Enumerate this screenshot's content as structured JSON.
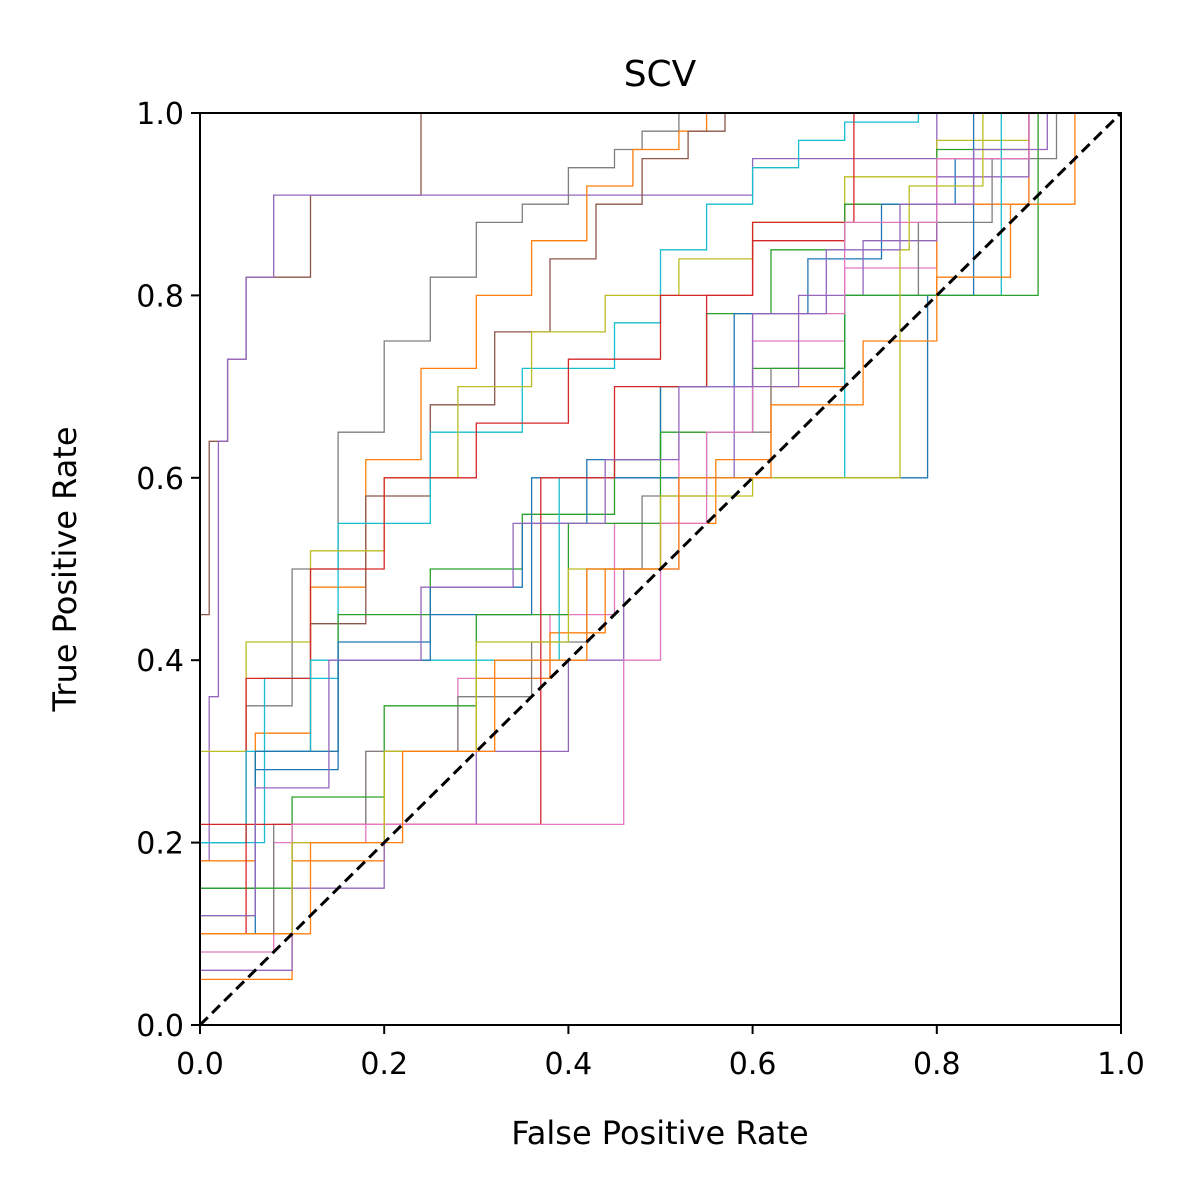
{
  "chart_data": {
    "type": "line",
    "title": "SCV",
    "xlabel": "False Positive Rate",
    "ylabel": "True Positive Rate",
    "xlim": [
      0.0,
      1.0
    ],
    "ylim": [
      0.0,
      1.0
    ],
    "xticks": [
      "0.0",
      "0.2",
      "0.4",
      "0.6",
      "0.8",
      "1.0"
    ],
    "yticks": [
      "0.0",
      "0.2",
      "0.4",
      "0.6",
      "0.8",
      "1.0"
    ],
    "grid": false,
    "legend": "none",
    "line_style": "step",
    "series": [
      {
        "color": "#8c564b",
        "x": [
          0,
          0.0,
          0.01,
          0.03,
          0.04,
          0.05,
          0.06,
          0.08,
          0.12,
          0.17,
          0.24,
          0.24
        ],
        "y": [
          0,
          0.27,
          0.45,
          0.64,
          0.73,
          0.73,
          0.82,
          0.82,
          0.82,
          0.91,
          0.91,
          1.0
        ]
      },
      {
        "color": "#9467bd",
        "x": [
          0,
          0.01,
          0.02,
          0.03,
          0.05,
          0.08,
          0.14,
          0.16,
          0.3,
          0.6,
          0.8,
          1.0
        ],
        "y": [
          0,
          0.18,
          0.36,
          0.64,
          0.73,
          0.82,
          0.91,
          0.91,
          0.91,
          0.91,
          0.95,
          1.0
        ]
      },
      {
        "color": "#7f7f7f",
        "x": [
          0,
          0.05,
          0.1,
          0.15,
          0.2,
          0.25,
          0.3,
          0.35,
          0.4,
          0.45,
          0.48,
          0.52,
          0.54,
          1.0
        ],
        "y": [
          0,
          0.2,
          0.35,
          0.5,
          0.65,
          0.75,
          0.82,
          0.88,
          0.9,
          0.94,
          0.96,
          0.98,
          1.0,
          1.0
        ]
      },
      {
        "color": "#ff7f0e",
        "x": [
          0,
          0.06,
          0.12,
          0.18,
          0.24,
          0.3,
          0.36,
          0.42,
          0.47,
          0.52,
          0.55,
          0.59,
          1.0
        ],
        "y": [
          0,
          0.18,
          0.32,
          0.48,
          0.62,
          0.72,
          0.8,
          0.86,
          0.92,
          0.96,
          0.98,
          1.0,
          1.0
        ]
      },
      {
        "color": "#8c564b",
        "x": [
          0,
          0.06,
          0.12,
          0.18,
          0.25,
          0.32,
          0.38,
          0.43,
          0.48,
          0.53,
          0.57,
          0.6,
          1.0
        ],
        "y": [
          0,
          0.15,
          0.3,
          0.44,
          0.58,
          0.68,
          0.76,
          0.84,
          0.9,
          0.95,
          0.98,
          1.0,
          1.0
        ]
      },
      {
        "color": "#17becf",
        "x": [
          0,
          0.07,
          0.15,
          0.25,
          0.35,
          0.45,
          0.5,
          0.55,
          0.6,
          0.65,
          0.7,
          0.78,
          0.9,
          1.0
        ],
        "y": [
          0,
          0.2,
          0.38,
          0.55,
          0.65,
          0.72,
          0.77,
          0.85,
          0.9,
          0.94,
          0.97,
          0.99,
          1.0,
          1.0
        ]
      },
      {
        "color": "#bcbd22",
        "x": [
          0,
          0.05,
          0.12,
          0.2,
          0.28,
          0.36,
          0.44,
          0.52,
          0.6,
          0.7,
          0.8,
          0.9,
          1.0
        ],
        "y": [
          0,
          0.3,
          0.42,
          0.52,
          0.6,
          0.7,
          0.76,
          0.8,
          0.84,
          0.88,
          0.93,
          0.97,
          1.0
        ]
      },
      {
        "color": "#d62728",
        "x": [
          0,
          0.05,
          0.12,
          0.2,
          0.3,
          0.4,
          0.5,
          0.6,
          0.7,
          0.8,
          0.9,
          1.0
        ],
        "y": [
          0,
          0.22,
          0.38,
          0.5,
          0.6,
          0.66,
          0.73,
          0.8,
          0.86,
          0.9,
          0.95,
          1.0
        ]
      },
      {
        "color": "#2ca02c",
        "x": [
          0,
          0.06,
          0.15,
          0.25,
          0.35,
          0.45,
          0.5,
          0.55,
          0.62,
          0.7,
          0.8,
          0.9,
          1.0
        ],
        "y": [
          0,
          0.12,
          0.3,
          0.45,
          0.5,
          0.56,
          0.62,
          0.7,
          0.78,
          0.85,
          0.9,
          0.96,
          1.0
        ]
      },
      {
        "color": "#1f77b4",
        "x": [
          0,
          0.06,
          0.15,
          0.25,
          0.35,
          0.42,
          0.5,
          0.58,
          0.66,
          0.74,
          0.82,
          0.9,
          1.0
        ],
        "y": [
          0,
          0.1,
          0.28,
          0.42,
          0.48,
          0.55,
          0.62,
          0.7,
          0.78,
          0.84,
          0.9,
          0.95,
          1.0
        ]
      },
      {
        "color": "#e377c2",
        "x": [
          0,
          0.08,
          0.18,
          0.28,
          0.38,
          0.45,
          0.52,
          0.6,
          0.7,
          0.8,
          0.9,
          1.0
        ],
        "y": [
          0,
          0.08,
          0.2,
          0.3,
          0.38,
          0.45,
          0.55,
          0.65,
          0.75,
          0.83,
          0.9,
          1.0
        ]
      },
      {
        "color": "#ff7f0e",
        "x": [
          0,
          0.1,
          0.2,
          0.3,
          0.38,
          0.44,
          0.5,
          0.56,
          0.62,
          0.7,
          0.8,
          0.9,
          1.0
        ],
        "y": [
          0,
          0.05,
          0.18,
          0.3,
          0.38,
          0.43,
          0.5,
          0.55,
          0.62,
          0.7,
          0.8,
          0.9,
          1.0
        ]
      },
      {
        "color": "#9467bd",
        "x": [
          0,
          0.1,
          0.2,
          0.3,
          0.4,
          0.46,
          0.52,
          0.58,
          0.65,
          0.72,
          0.8,
          0.9,
          1.0
        ],
        "y": [
          0,
          0.06,
          0.15,
          0.22,
          0.3,
          0.4,
          0.5,
          0.6,
          0.7,
          0.8,
          0.86,
          0.93,
          1.0
        ]
      },
      {
        "color": "#7f7f7f",
        "x": [
          0,
          0.08,
          0.18,
          0.28,
          0.36,
          0.42,
          0.48,
          0.55,
          0.62,
          0.7,
          0.78,
          0.86,
          0.93,
          1.0
        ],
        "y": [
          0,
          0.1,
          0.22,
          0.3,
          0.36,
          0.42,
          0.5,
          0.58,
          0.65,
          0.72,
          0.8,
          0.88,
          0.95,
          1.0
        ]
      },
      {
        "color": "#17becf",
        "x": [
          0,
          0.05,
          0.12,
          0.2,
          0.3,
          0.39,
          0.4,
          0.5,
          0.6,
          0.7,
          0.71,
          0.79,
          0.8,
          0.87,
          0.9,
          1.0
        ],
        "y": [
          0,
          0.2,
          0.3,
          0.4,
          0.4,
          0.4,
          0.6,
          0.6,
          0.6,
          0.6,
          0.8,
          0.8,
          0.8,
          0.8,
          1.0,
          1.0
        ]
      },
      {
        "color": "#1f77b4",
        "x": [
          0,
          0.06,
          0.15,
          0.25,
          0.36,
          0.4,
          0.5,
          0.6,
          0.71,
          0.75,
          0.79,
          0.8,
          0.84,
          0.9,
          1.0
        ],
        "y": [
          0,
          0.15,
          0.3,
          0.4,
          0.45,
          0.6,
          0.6,
          0.6,
          0.6,
          0.6,
          0.6,
          0.8,
          0.8,
          1.0,
          1.0
        ]
      },
      {
        "color": "#2ca02c",
        "x": [
          0,
          0.1,
          0.2,
          0.3,
          0.4,
          0.5,
          0.6,
          0.7,
          0.8,
          0.85,
          0.91,
          0.91,
          1.0
        ],
        "y": [
          0,
          0.15,
          0.25,
          0.35,
          0.45,
          0.55,
          0.65,
          0.72,
          0.8,
          0.8,
          0.8,
          0.95,
          1.0
        ]
      },
      {
        "color": "#d62728",
        "x": [
          0,
          0.05,
          0.15,
          0.25,
          0.37,
          0.37,
          0.45,
          0.55,
          0.6,
          0.65,
          0.71,
          0.72,
          0.8,
          1.0
        ],
        "y": [
          0,
          0.1,
          0.22,
          0.22,
          0.22,
          0.5,
          0.6,
          0.7,
          0.8,
          0.88,
          0.88,
          1.0,
          1.0,
          1.0
        ]
      },
      {
        "color": "#e377c2",
        "x": [
          0,
          0.1,
          0.2,
          0.3,
          0.4,
          0.46,
          0.5,
          0.55,
          0.6,
          0.7,
          0.8,
          0.9,
          1.0
        ],
        "y": [
          0,
          0.1,
          0.22,
          0.22,
          0.22,
          0.22,
          0.4,
          0.55,
          0.65,
          0.78,
          0.88,
          0.95,
          1.0
        ]
      },
      {
        "color": "#bcbd22",
        "x": [
          0,
          0.1,
          0.2,
          0.3,
          0.4,
          0.5,
          0.6,
          0.7,
          0.76,
          0.77,
          0.85,
          1.0
        ],
        "y": [
          0,
          0.1,
          0.2,
          0.3,
          0.42,
          0.5,
          0.58,
          0.6,
          0.6,
          0.85,
          0.92,
          1.0
        ]
      },
      {
        "color": "#ff7f0e",
        "x": [
          0,
          0.12,
          0.22,
          0.32,
          0.42,
          0.52,
          0.62,
          0.72,
          0.8,
          0.88,
          0.95,
          1.0
        ],
        "y": [
          0,
          0.1,
          0.2,
          0.3,
          0.4,
          0.5,
          0.6,
          0.68,
          0.75,
          0.82,
          0.9,
          1.0
        ]
      },
      {
        "color": "#9467bd",
        "x": [
          0,
          0.06,
          0.14,
          0.24,
          0.34,
          0.44,
          0.52,
          0.6,
          0.68,
          0.76,
          0.84,
          0.92,
          1.0
        ],
        "y": [
          0,
          0.12,
          0.26,
          0.4,
          0.48,
          0.55,
          0.62,
          0.7,
          0.78,
          0.85,
          0.9,
          0.96,
          1.0
        ]
      }
    ]
  }
}
